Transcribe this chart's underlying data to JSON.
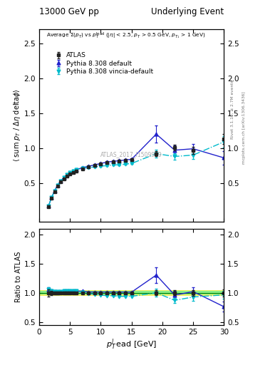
{
  "title_left": "13000 GeV pp",
  "title_right": "Underlying Event",
  "annotation": "ATLAS_2017_I1509919",
  "right_label_top": "Rivet 3.1.10, ≥ 2.7M events",
  "right_label_bottom": "mcplots.cern.ch [arXiv:1306.3436]",
  "data_x": [
    1.5,
    2.0,
    2.5,
    3.0,
    3.5,
    4.0,
    4.5,
    5.0,
    5.5,
    6.0,
    7.0,
    8.0,
    9.0,
    10.0,
    11.0,
    12.0,
    13.0,
    14.0,
    15.0,
    19.0,
    22.0,
    25.0,
    30.0
  ],
  "data_y": [
    0.16,
    0.28,
    0.38,
    0.46,
    0.52,
    0.56,
    0.6,
    0.63,
    0.65,
    0.67,
    0.7,
    0.73,
    0.75,
    0.77,
    0.79,
    0.8,
    0.81,
    0.82,
    0.83,
    0.92,
    1.01,
    0.97,
    1.13
  ],
  "data_yerr": [
    0.01,
    0.01,
    0.01,
    0.01,
    0.01,
    0.01,
    0.01,
    0.01,
    0.01,
    0.01,
    0.01,
    0.01,
    0.01,
    0.01,
    0.01,
    0.01,
    0.01,
    0.01,
    0.01,
    0.04,
    0.04,
    0.05,
    0.07
  ],
  "py_x": [
    1.5,
    2.0,
    2.5,
    3.0,
    3.5,
    4.0,
    4.5,
    5.0,
    5.5,
    6.0,
    7.0,
    8.0,
    9.0,
    10.0,
    11.0,
    12.0,
    13.0,
    14.0,
    15.0,
    19.0,
    22.0,
    25.0,
    30.0
  ],
  "py_y": [
    0.17,
    0.29,
    0.39,
    0.47,
    0.53,
    0.58,
    0.62,
    0.65,
    0.67,
    0.69,
    0.72,
    0.74,
    0.76,
    0.78,
    0.8,
    0.81,
    0.82,
    0.83,
    0.84,
    1.2,
    0.97,
    0.99,
    0.86
  ],
  "py_yerr": [
    0.005,
    0.005,
    0.005,
    0.005,
    0.005,
    0.005,
    0.005,
    0.005,
    0.005,
    0.005,
    0.005,
    0.005,
    0.005,
    0.005,
    0.005,
    0.005,
    0.005,
    0.005,
    0.005,
    0.12,
    0.07,
    0.07,
    0.1
  ],
  "vinc_x": [
    1.5,
    2.0,
    2.5,
    3.0,
    3.5,
    4.0,
    4.5,
    5.0,
    5.5,
    6.0,
    7.0,
    8.0,
    9.0,
    10.0,
    11.0,
    12.0,
    13.0,
    14.0,
    15.0,
    19.0,
    22.0,
    25.0,
    30.0
  ],
  "vinc_y": [
    0.17,
    0.29,
    0.39,
    0.47,
    0.53,
    0.58,
    0.62,
    0.65,
    0.67,
    0.69,
    0.71,
    0.72,
    0.73,
    0.74,
    0.75,
    0.76,
    0.76,
    0.77,
    0.78,
    0.92,
    0.88,
    0.9,
    1.09
  ],
  "vinc_yerr": [
    0.005,
    0.005,
    0.005,
    0.005,
    0.005,
    0.005,
    0.005,
    0.005,
    0.005,
    0.005,
    0.005,
    0.005,
    0.005,
    0.005,
    0.005,
    0.005,
    0.005,
    0.005,
    0.005,
    0.06,
    0.05,
    0.06,
    0.08
  ],
  "color_data": "#222222",
  "color_py": "#2222cc",
  "color_vinc": "#00bbcc",
  "color_band_yellow": "#eeee60",
  "color_band_green": "#88ee88",
  "xlim": [
    0,
    30
  ],
  "ylim_main": [
    -0.05,
    2.7
  ],
  "ylim_ratio": [
    0.45,
    2.1
  ],
  "yticks_main": [
    0.5,
    1.0,
    1.5,
    2.0,
    2.5
  ],
  "yticks_ratio": [
    0.5,
    1.0,
    1.5,
    2.0
  ]
}
